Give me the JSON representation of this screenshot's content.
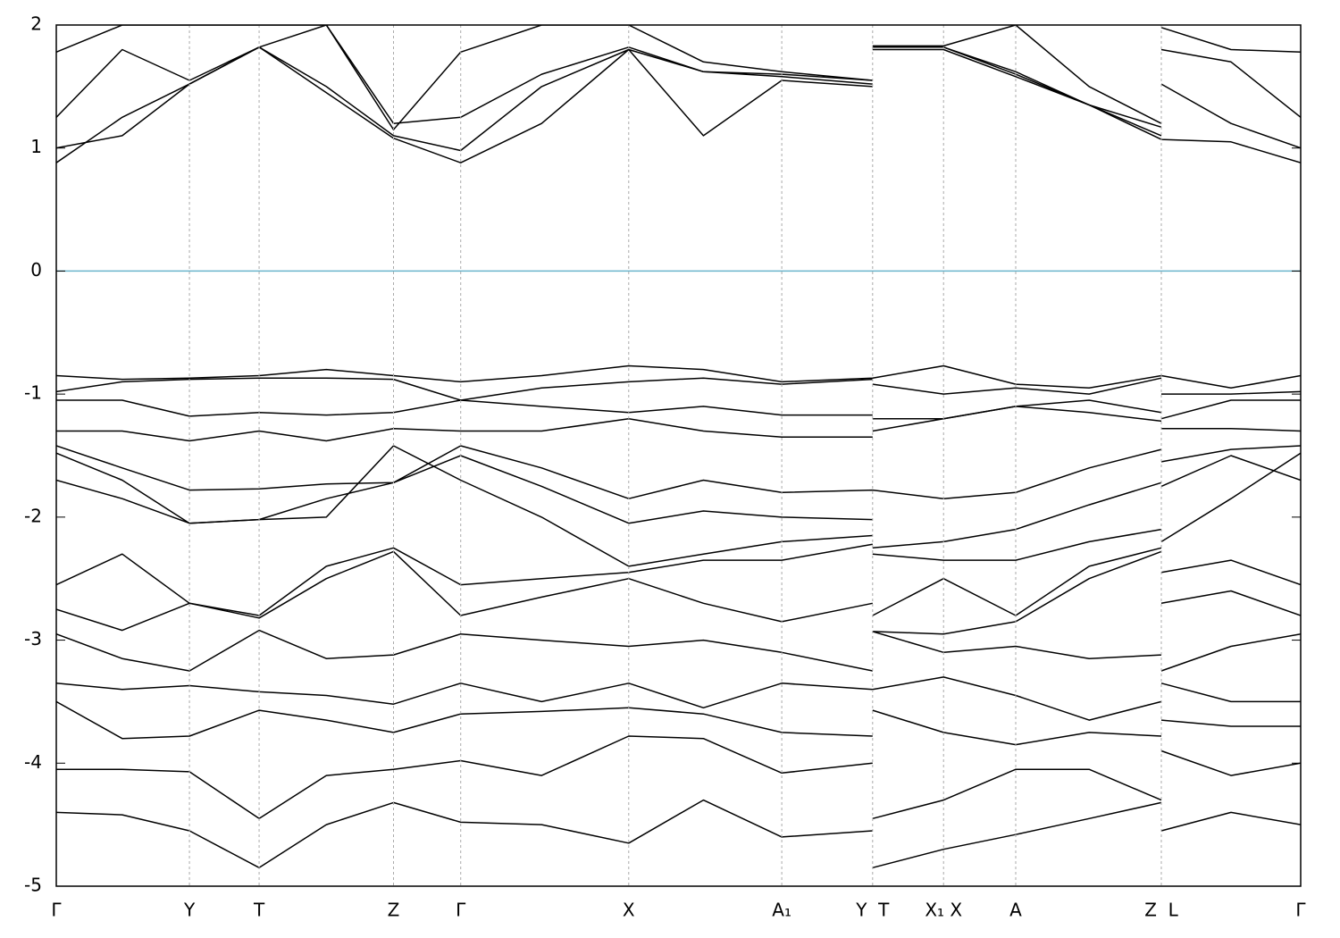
{
  "chart_data": {
    "type": "line",
    "x": [
      0,
      0.53,
      1.07,
      1.63,
      2.17,
      2.71,
      3.25,
      3.9,
      4.6,
      5.2,
      5.83,
      6.56,
      6.56,
      6.56,
      7.13,
      7.71,
      8.3,
      8.88,
      8.88,
      8.88,
      9.44,
      10.0
    ],
    "xlim": [
      0,
      10
    ],
    "ylim": [
      -5,
      2
    ],
    "yticks": [
      -5,
      -4,
      -3,
      -2,
      -1,
      0,
      1,
      2
    ],
    "xticks": [
      {
        "value": 0,
        "label": "Γ"
      },
      {
        "value": 1.07,
        "label": "Y"
      },
      {
        "value": 1.63,
        "label": "T"
      },
      {
        "value": 2.71,
        "label": "Z"
      },
      {
        "value": 3.25,
        "label": "Γ"
      },
      {
        "value": 4.6,
        "label": "X"
      },
      {
        "value": 5.83,
        "label": "A₁"
      },
      {
        "value": 6.56,
        "label": "Y  T"
      },
      {
        "value": 7.13,
        "label": "X₁ X"
      },
      {
        "value": 7.71,
        "label": "A"
      },
      {
        "value": 8.88,
        "label": "Z  L"
      },
      {
        "value": 10.0,
        "label": "Γ"
      }
    ],
    "hline": {
      "value": 0,
      "color": "#6ab4cc"
    },
    "color": "#000000",
    "series": [
      {
        "values": [
          0.88,
          1.25,
          1.52,
          1.82,
          1.45,
          1.08,
          0.88,
          1.2,
          1.8,
          1.1,
          1.55,
          1.5,
          null,
          1.82,
          1.82,
          1.6,
          1.35,
          1.07,
          null,
          1.07,
          1.05,
          0.88
        ]
      },
      {
        "values": [
          1.0,
          1.1,
          1.52,
          1.82,
          1.5,
          1.1,
          0.98,
          1.5,
          1.8,
          1.62,
          1.58,
          1.52,
          null,
          1.8,
          1.8,
          1.58,
          1.35,
          1.1,
          null,
          1.52,
          1.2,
          1.0
        ]
      },
      {
        "values": [
          1.25,
          1.8,
          1.55,
          1.82,
          2.0,
          1.2,
          1.25,
          1.6,
          1.82,
          1.62,
          1.6,
          1.55,
          null,
          1.82,
          1.82,
          1.62,
          1.35,
          1.17,
          null,
          1.8,
          1.7,
          1.25
        ]
      },
      {
        "values": [
          1.78,
          2.0,
          2.0,
          2.0,
          2.0,
          1.15,
          1.78,
          2.0,
          2.0,
          1.7,
          1.62,
          1.55,
          null,
          1.83,
          1.83,
          2.0,
          1.5,
          1.2,
          null,
          1.98,
          1.8,
          1.78
        ]
      },
      {
        "values": [
          -0.85,
          -0.88,
          -0.87,
          -0.85,
          -0.8,
          -0.85,
          -0.9,
          -0.85,
          -0.77,
          -0.8,
          -0.9,
          -0.87,
          null,
          -0.87,
          -0.77,
          -0.92,
          -0.95,
          -0.85,
          null,
          -0.85,
          -0.95,
          -0.85
        ]
      },
      {
        "values": [
          -0.98,
          -0.9,
          -0.88,
          -0.87,
          -0.87,
          -0.88,
          -1.05,
          -0.95,
          -0.9,
          -0.87,
          -0.92,
          -0.88,
          null,
          -0.92,
          -1.0,
          -0.95,
          -1.0,
          -0.87,
          null,
          -1.0,
          -1.0,
          -0.98
        ]
      },
      {
        "values": [
          -1.05,
          -1.05,
          -1.18,
          -1.15,
          -1.17,
          -1.15,
          -1.05,
          -1.1,
          -1.15,
          -1.1,
          -1.17,
          -1.17,
          null,
          -1.2,
          -1.2,
          -1.1,
          -1.05,
          -1.15,
          null,
          -1.2,
          -1.05,
          -1.05
        ]
      },
      {
        "values": [
          -1.3,
          -1.3,
          -1.38,
          -1.3,
          -1.38,
          -1.28,
          -1.3,
          -1.3,
          -1.2,
          -1.3,
          -1.35,
          -1.35,
          null,
          -1.3,
          -1.2,
          -1.1,
          -1.15,
          -1.22,
          null,
          -1.28,
          -1.28,
          -1.3
        ]
      },
      {
        "values": [
          -1.42,
          -1.6,
          -1.78,
          -1.77,
          -1.73,
          -1.72,
          -1.42,
          -1.6,
          -1.85,
          -1.7,
          -1.8,
          -1.78,
          null,
          -1.78,
          -1.85,
          -1.8,
          -1.6,
          -1.45,
          null,
          -1.55,
          -1.45,
          -1.42
        ]
      },
      {
        "values": [
          -1.7,
          -1.85,
          -2.05,
          -2.02,
          -1.85,
          -1.72,
          -1.5,
          -1.75,
          -2.05,
          -1.95,
          -2.0,
          -2.02,
          null,
          -2.25,
          -2.2,
          -2.1,
          -1.9,
          -1.72,
          null,
          -1.75,
          -1.5,
          -1.7
        ]
      },
      {
        "values": [
          -1.48,
          -1.7,
          -2.05,
          -2.02,
          -2.0,
          -1.42,
          -1.7,
          -2.0,
          -2.4,
          -2.3,
          -2.2,
          -2.15,
          null,
          -2.3,
          -2.35,
          -2.35,
          -2.2,
          -2.1,
          null,
          -2.2,
          -1.85,
          -1.48
        ]
      },
      {
        "values": [
          -2.55,
          -2.3,
          -2.7,
          -2.8,
          -2.4,
          -2.25,
          -2.55,
          -2.5,
          -2.45,
          -2.35,
          -2.35,
          -2.22,
          null,
          -2.8,
          -2.5,
          -2.8,
          -2.4,
          -2.25,
          null,
          -2.45,
          -2.35,
          -2.55
        ]
      },
      {
        "values": [
          -2.75,
          -2.92,
          -2.7,
          -2.82,
          -2.5,
          -2.28,
          -2.8,
          -2.65,
          -2.5,
          -2.7,
          -2.85,
          -2.7,
          null,
          -2.93,
          -2.95,
          -2.85,
          -2.5,
          -2.28,
          null,
          -2.7,
          -2.6,
          -2.8
        ]
      },
      {
        "values": [
          -2.95,
          -3.15,
          -3.25,
          -2.92,
          -3.15,
          -3.12,
          -2.95,
          -3.0,
          -3.05,
          -3.0,
          -3.1,
          -3.25,
          null,
          -2.93,
          -3.1,
          -3.05,
          -3.15,
          -3.12,
          null,
          -3.25,
          -3.05,
          -2.95
        ]
      },
      {
        "values": [
          -3.35,
          -3.4,
          -3.37,
          -3.42,
          -3.45,
          -3.52,
          -3.35,
          -3.5,
          -3.35,
          -3.55,
          -3.35,
          -3.4,
          null,
          -3.4,
          -3.3,
          -3.45,
          -3.65,
          -3.5,
          null,
          -3.35,
          -3.5,
          -3.5
        ]
      },
      {
        "values": [
          -3.5,
          -3.8,
          -3.78,
          -3.57,
          -3.65,
          -3.75,
          -3.6,
          -3.58,
          -3.55,
          -3.6,
          -3.75,
          -3.78,
          null,
          -3.57,
          -3.75,
          -3.85,
          -3.75,
          -3.78,
          null,
          -3.65,
          -3.7,
          -3.7
        ]
      },
      {
        "values": [
          -4.05,
          -4.05,
          -4.07,
          -4.45,
          -4.1,
          -4.05,
          -3.98,
          -4.1,
          -3.78,
          -3.8,
          -4.08,
          -4.0,
          null,
          -4.45,
          -4.3,
          -4.05,
          -4.05,
          -4.3,
          null,
          -3.9,
          -4.1,
          -4.0
        ]
      },
      {
        "values": [
          -4.4,
          -4.42,
          -4.55,
          -4.85,
          -4.5,
          -4.32,
          -4.48,
          -4.5,
          -4.65,
          -4.3,
          -4.6,
          -4.55,
          null,
          -4.85,
          -4.7,
          -4.58,
          -4.45,
          -4.32,
          null,
          -4.55,
          -4.4,
          -4.5
        ]
      }
    ]
  }
}
